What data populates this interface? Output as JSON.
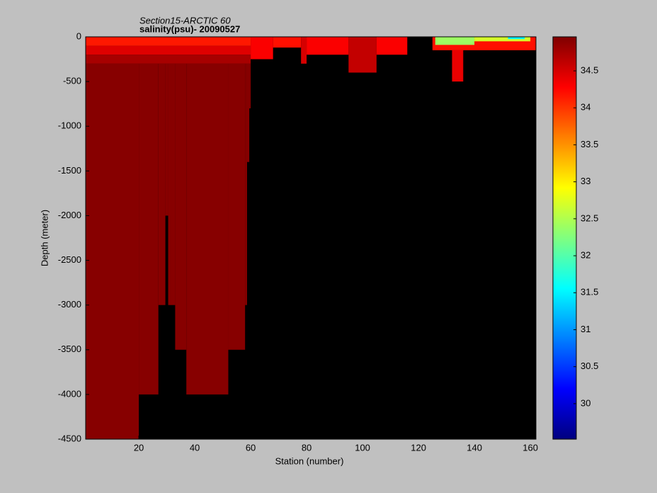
{
  "chart_data": {
    "type": "section",
    "title": "Section15-ARCTIC 60",
    "subtitle": "salinity(psu)- 20090527",
    "xlabel": "Station (number)",
    "ylabel": "Depth (meter)",
    "xlim": [
      1,
      162
    ],
    "xticks": [
      20,
      40,
      60,
      80,
      100,
      120,
      140,
      160
    ],
    "ylim": [
      -4500,
      0
    ],
    "yticks": [
      -4500,
      -4000,
      -3500,
      -3000,
      -2500,
      -2000,
      -1500,
      -1000,
      -500,
      0
    ],
    "colormap": "jet",
    "background": "#000000",
    "clim": [
      29.52,
      34.96
    ],
    "cticks": [
      30,
      30.5,
      31,
      31.5,
      32,
      32.5,
      33,
      33.5,
      34,
      34.5
    ],
    "cells": [
      {
        "x": [
          1,
          20
        ],
        "depth": [
          -300,
          -4500
        ],
        "value": 34.92
      },
      {
        "x": [
          20,
          27
        ],
        "depth": [
          -300,
          -4000
        ],
        "value": 34.92
      },
      {
        "x": [
          27,
          29.5
        ],
        "depth": [
          -300,
          -3000
        ],
        "value": 34.92
      },
      {
        "x": [
          29.5,
          30.5
        ],
        "depth": [
          -300,
          -2000
        ],
        "value": 34.92
      },
      {
        "x": [
          30.5,
          33
        ],
        "depth": [
          -300,
          -3000
        ],
        "value": 34.92
      },
      {
        "x": [
          33,
          37
        ],
        "depth": [
          -300,
          -3500
        ],
        "value": 34.92
      },
      {
        "x": [
          37,
          52
        ],
        "depth": [
          -300,
          -4000
        ],
        "value": 34.92
      },
      {
        "x": [
          52,
          58
        ],
        "depth": [
          -300,
          -3500
        ],
        "value": 34.92
      },
      {
        "x": [
          58,
          58.7
        ],
        "depth": [
          -300,
          -3000
        ],
        "value": 34.92
      },
      {
        "x": [
          58.7,
          59.5
        ],
        "depth": [
          -300,
          -1400
        ],
        "value": 34.92
      },
      {
        "x": [
          59.5,
          60
        ],
        "depth": [
          -300,
          -800
        ],
        "value": 34.92
      },
      {
        "x": [
          1,
          60
        ],
        "depth": [
          -200,
          -300
        ],
        "value": 34.75
      },
      {
        "x": [
          1,
          60
        ],
        "depth": [
          -100,
          -200
        ],
        "value": 34.45
      },
      {
        "x": [
          1,
          60
        ],
        "depth": [
          0,
          -100
        ],
        "value": 34.15
      },
      {
        "x": [
          60,
          68
        ],
        "depth": [
          0,
          -250
        ],
        "value": 34.3
      },
      {
        "x": [
          68,
          78
        ],
        "depth": [
          0,
          -120
        ],
        "value": 34.2
      },
      {
        "x": [
          78,
          80
        ],
        "depth": [
          0,
          -300
        ],
        "value": 34.5
      },
      {
        "x": [
          80,
          95
        ],
        "depth": [
          0,
          -200
        ],
        "value": 34.3
      },
      {
        "x": [
          95,
          105
        ],
        "depth": [
          0,
          -400
        ],
        "value": 34.6
      },
      {
        "x": [
          105,
          116
        ],
        "depth": [
          0,
          -200
        ],
        "value": 34.3
      },
      {
        "x": [
          125,
          162
        ],
        "depth": [
          0,
          -150
        ],
        "value": 34.2
      },
      {
        "x": [
          132,
          136
        ],
        "depth": [
          -150,
          -500
        ],
        "value": 34.4
      },
      {
        "x": [
          126,
          140
        ],
        "depth": [
          0,
          -90
        ],
        "value": 32.4
      },
      {
        "x": [
          140,
          160
        ],
        "depth": [
          0,
          -50
        ],
        "value": 32.7
      },
      {
        "x": [
          152,
          158
        ],
        "depth": [
          0,
          -25
        ],
        "value": 31.5
      }
    ]
  }
}
